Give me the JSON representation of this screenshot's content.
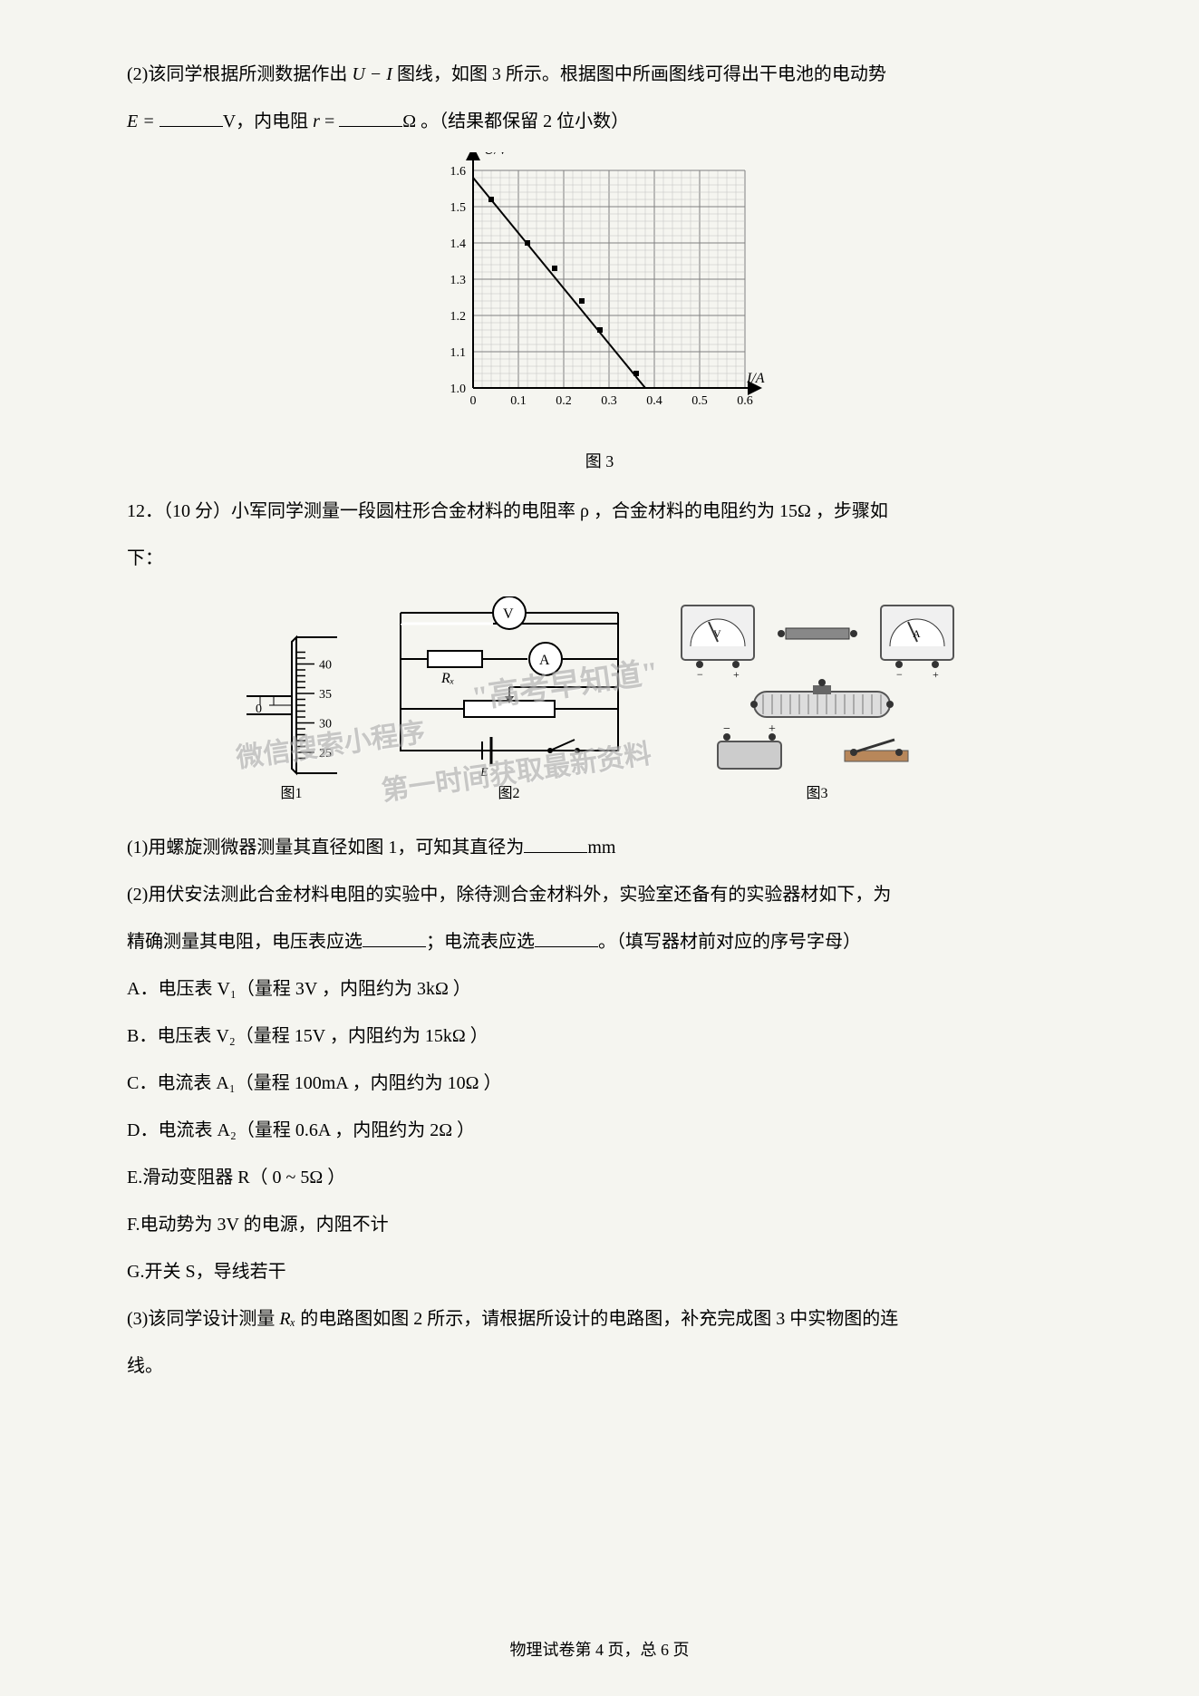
{
  "q11_p2": {
    "prefix": "(2)该同学根据所测数据作出 ",
    "var1": "U − I",
    "mid1": " 图线，如图 3 所示。根据图中所画图线可得出干电池的电动势",
    "line2_a": "E = ",
    "unit1": "V，内电阻 ",
    "var_r": "r",
    "eq": " = ",
    "unit2": "Ω 。（结果都保留 2 位小数）"
  },
  "chart": {
    "ylabel": "U/V",
    "xlabel": "I/A",
    "ylim": [
      1.0,
      1.6
    ],
    "xlim": [
      0,
      0.6
    ],
    "yticks": [
      "1.0",
      "1.1",
      "1.2",
      "1.3",
      "1.4",
      "1.5",
      "1.6"
    ],
    "xticks": [
      "0",
      "0.1",
      "0.2",
      "0.3",
      "0.4",
      "0.5",
      "0.6"
    ],
    "points": [
      {
        "x": 0.04,
        "y": 1.52
      },
      {
        "x": 0.12,
        "y": 1.4
      },
      {
        "x": 0.18,
        "y": 1.33
      },
      {
        "x": 0.24,
        "y": 1.24
      },
      {
        "x": 0.28,
        "y": 1.16
      },
      {
        "x": 0.36,
        "y": 1.04
      }
    ],
    "line": {
      "x1": 0.0,
      "y1": 1.58,
      "x2": 0.38,
      "y2": 1.0
    },
    "caption": "图 3",
    "grid_major_color": "#808080",
    "grid_minor_color": "#c0c0c0",
    "background": "#ffffff",
    "axis_color": "#000000"
  },
  "q12": {
    "header": "12．（10 分）小军同学测量一段圆柱形合金材料的电阻率 ρ ，合金材料的电阻约为 15Ω ，步骤如",
    "header2": "下：",
    "fig_captions": {
      "f1": "图1",
      "f2": "图2",
      "f3": "图3"
    },
    "micrometer": {
      "marks": [
        "40",
        "35",
        "30",
        "25"
      ],
      "main": "0"
    },
    "p1": "(1)用螺旋测微器测量其直径如图 1，可知其直径为",
    "p1_unit": "mm",
    "p2a": "(2)用伏安法测此合金材料电阻的实验中，除待测合金材料外，实验室还备有的实验器材如下，为",
    "p2b": "精确测量其电阻，电压表应选",
    "p2c": "；电流表应选",
    "p2d": "。（填写器材前对应的序号字母）",
    "optA": "A．电压表 V₁（量程 3V ，内阻约为 3kΩ ）",
    "optB": "B．电压表 V₂（量程 15V ，内阻约为 15kΩ ）",
    "optC": "C．电流表 A₁（量程 100mA ，内阻约为 10Ω ）",
    "optD": "D．电流表 A₂（量程 0.6A ，内阻约为 2Ω ）",
    "optE": "E.滑动变阻器 R（ 0 ~ 5Ω ）",
    "optF": "F.电动势为 3V 的电源，内阻不计",
    "optG": "G.开关 S，导线若干",
    "p3a": "(3)该同学设计测量 ",
    "p3var": "Rₓ",
    "p3b": " 的电路图如图 2 所示，请根据所设计的电路图，补充完成图 3 中实物图的连",
    "p3c": "线。"
  },
  "footer": "物理试卷第 4 页，总 6 页",
  "watermarks": {
    "w1": "\"高考早知道\"",
    "w2": "微信搜索小程序",
    "w3": "第一时间获取最新资料"
  }
}
